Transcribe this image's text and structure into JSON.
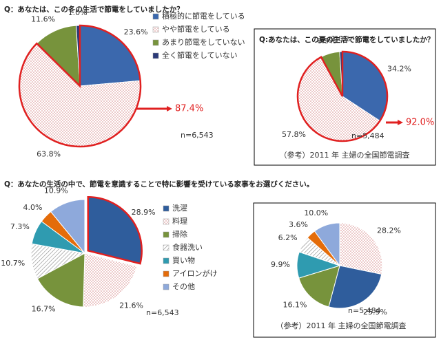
{
  "chart_data": [
    {
      "type": "pie",
      "title": "Q：あなたは、この冬の生活で節電をしていましたか？",
      "categories": [
        "積極的に節電をしている",
        "やや節電をしている",
        "あまり節電をしていない",
        "全く節電をしていない"
      ],
      "values": [
        23.6,
        63.8,
        11.6,
        1.0
      ],
      "value_labels": [
        "23.6%",
        "63.8%",
        "11.6%",
        "1.0%"
      ],
      "colors": [
        "#3b68ad",
        "#f4dcdc",
        "#77933c",
        "#2b3a78"
      ],
      "patterns": [
        "none",
        "dots",
        "none",
        "none"
      ],
      "highlight": [
        0,
        1
      ],
      "annotation": "87.4%",
      "n": "n=6,543",
      "legend": true
    },
    {
      "type": "pie",
      "title": "Q:あなたは、この夏の生活で節電をしていましたか？",
      "values": [
        34.2,
        57.8,
        6.9,
        1.0
      ],
      "value_labels": [
        "34.2%",
        "57.8%",
        "6.9%",
        "1.0%"
      ],
      "colors": [
        "#3b68ad",
        "#f4dcdc",
        "#77933c",
        "#2b3a78"
      ],
      "patterns": [
        "none",
        "dots",
        "none",
        "none"
      ],
      "highlight": [
        0,
        1
      ],
      "annotation": "92.0%",
      "n": "n=5,484",
      "note": "（参考）2011 年 主婦の全国節電調査",
      "legend": false
    },
    {
      "type": "pie",
      "title": "Q：あなたの生活の中で、節電を意識することで特に影響を受けている家事をお選びください。",
      "categories": [
        "洗濯",
        "料理",
        "掃除",
        "食器洗い",
        "買い物",
        "アイロンがけ",
        "その他"
      ],
      "values": [
        28.9,
        21.6,
        16.7,
        10.7,
        7.3,
        4.0,
        10.9
      ],
      "value_labels": [
        "28.9%",
        "21.6%",
        "16.7%",
        "10.7%",
        "7.3%",
        "4.0%",
        "10.9%"
      ],
      "colors": [
        "#2f5d9c",
        "#f4dcdc",
        "#77933c",
        "#ffffff",
        "#2f9bb0",
        "#e46c0a",
        "#8ea9db"
      ],
      "patterns": [
        "none",
        "dots",
        "none",
        "hatch",
        "none",
        "none",
        "none"
      ],
      "highlight": [
        0
      ],
      "n": "n=6,543",
      "legend": true
    },
    {
      "type": "pie",
      "values": [
        28.2,
        25.9,
        16.1,
        9.9,
        6.2,
        3.6,
        10.0
      ],
      "value_labels": [
        "28.2%",
        "25.9%",
        "16.1%",
        "9.9%",
        "6.2%",
        "3.6%",
        "10.0%"
      ],
      "colors": [
        "#f4dcdc",
        "#2f5d9c",
        "#77933c",
        "#2f9bb0",
        "#ffffff",
        "#e46c0a",
        "#8ea9db"
      ],
      "patterns": [
        "dots",
        "none",
        "none",
        "none",
        "hatch",
        "none",
        "none"
      ],
      "n": "n=5,484",
      "note": "（参考）2011 年 主婦の全国節電調査",
      "legend": false
    }
  ]
}
